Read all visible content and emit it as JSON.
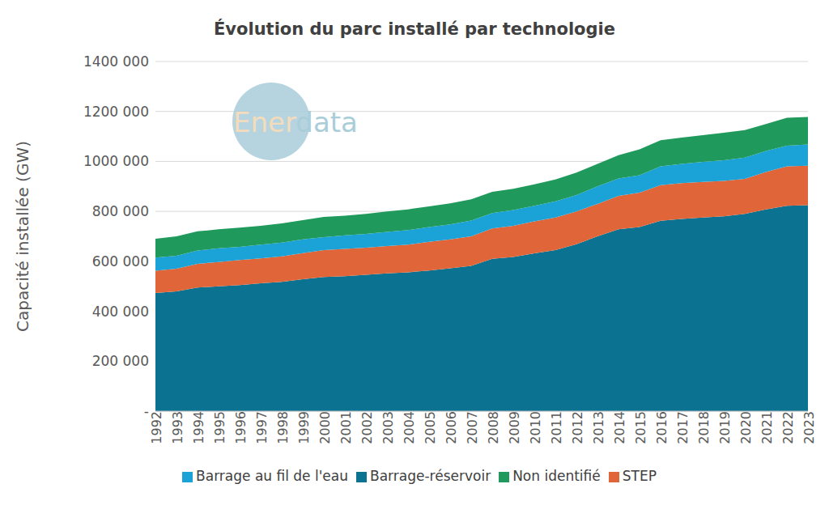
{
  "chart_data": {
    "type": "area",
    "title": "Évolution du parc installé par technologie",
    "y_label": "Capacité installée (GW)",
    "annotations": [
      "Enerdata"
    ],
    "stacked": true,
    "grid": true,
    "legend": "bottom",
    "categories": [
      "1992",
      "1993",
      "1994",
      "1995",
      "1996",
      "1997",
      "1998",
      "1999",
      "2000",
      "2001",
      "2002",
      "2003",
      "2004",
      "2005",
      "2006",
      "2007",
      "2008",
      "2009",
      "2010",
      "2011",
      "2012",
      "2013",
      "2014",
      "2015",
      "2016",
      "2017",
      "2018",
      "2019",
      "2020",
      "2021",
      "2022",
      "2023"
    ],
    "series": [
      {
        "name": "Barrage-réservoir",
        "color": "#0b7391",
        "values": [
          473000,
          480000,
          495000,
          500000,
          505000,
          512000,
          518000,
          528000,
          537000,
          540000,
          546000,
          552000,
          556000,
          563000,
          572000,
          582000,
          610000,
          617000,
          632000,
          645000,
          668000,
          700000,
          728000,
          737000,
          762000,
          770000,
          775000,
          780000,
          790000,
          808000,
          822000,
          825000
        ]
      },
      {
        "name": "STEP",
        "color": "#e0663a",
        "values": [
          89000,
          90000,
          95000,
          97000,
          100000,
          100000,
          102000,
          105000,
          108000,
          110000,
          109000,
          109000,
          111000,
          115000,
          116000,
          118000,
          122000,
          125000,
          128000,
          130000,
          132000,
          130000,
          134000,
          138000,
          143000,
          143000,
          143000,
          142000,
          140000,
          150000,
          158000,
          158000
        ]
      },
      {
        "name": "Barrage au fil de l'eau",
        "color": "#1ba3d8",
        "values": [
          53000,
          52000,
          53000,
          55000,
          53000,
          55000,
          55000,
          55000,
          52000,
          54000,
          55000,
          57000,
          58000,
          59000,
          60000,
          63000,
          61000,
          63000,
          62000,
          65000,
          65000,
          70000,
          70000,
          70000,
          75000,
          77000,
          80000,
          83000,
          85000,
          84000,
          83000,
          85000
        ]
      },
      {
        "name": "Non identifié",
        "color": "#1f9a5c",
        "values": [
          75000,
          78000,
          77000,
          76000,
          77000,
          75000,
          77000,
          77000,
          81000,
          79000,
          80000,
          82000,
          83000,
          83000,
          84000,
          85000,
          85000,
          85000,
          86000,
          88000,
          90000,
          90000,
          93000,
          103000,
          105000,
          105000,
          107000,
          110000,
          110000,
          108000,
          112000,
          110000
        ]
      }
    ],
    "ylim": [
      0,
      1400000
    ],
    "yticks": [
      {
        "value": 0,
        "label": "-"
      },
      {
        "value": 200000,
        "label": "200 000"
      },
      {
        "value": 400000,
        "label": "400 000"
      },
      {
        "value": 600000,
        "label": "600 000"
      },
      {
        "value": 800000,
        "label": "800 000"
      },
      {
        "value": 1000000,
        "label": "1000 000"
      },
      {
        "value": 1200000,
        "label": "1200 000"
      },
      {
        "value": 1400000,
        "label": "1400 000"
      }
    ]
  }
}
